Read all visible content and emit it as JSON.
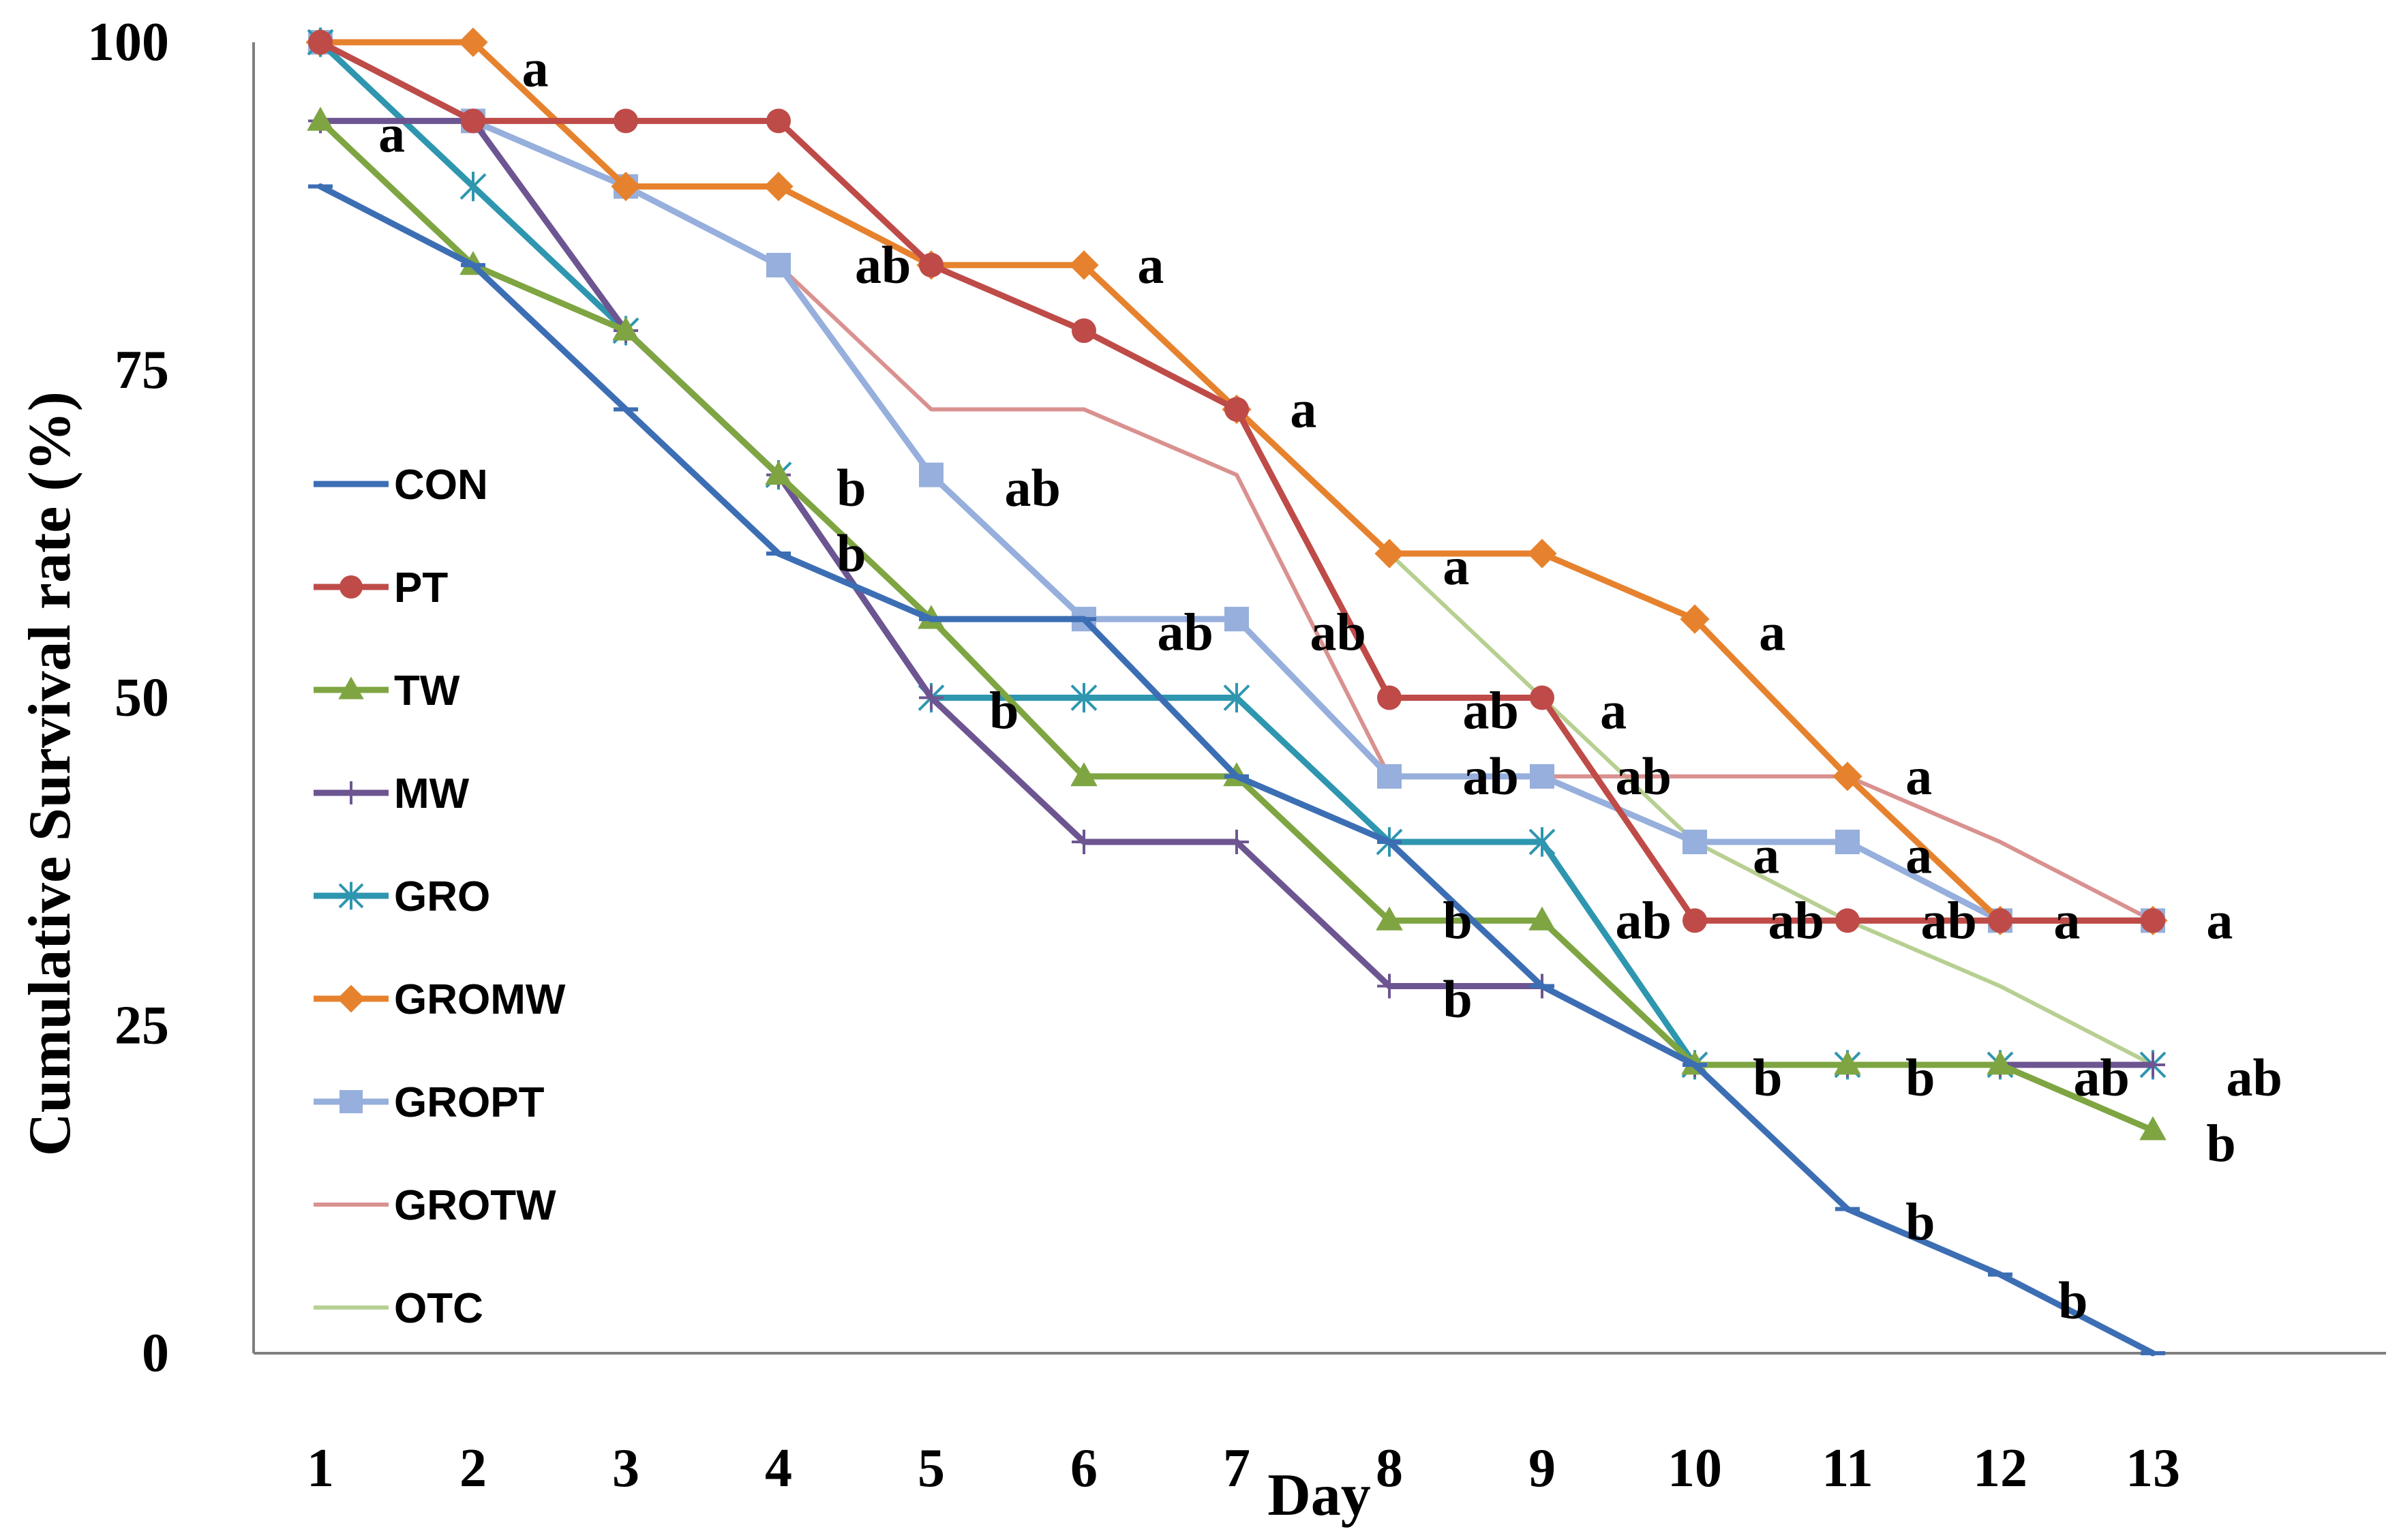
{
  "chart_data": {
    "type": "line",
    "title": "",
    "xlabel": "Day",
    "ylabel": "Cumulative Survival rate (%)",
    "ylim": [
      0,
      100
    ],
    "yticks": [
      0,
      25,
      50,
      75,
      100
    ],
    "x": [
      1,
      2,
      3,
      4,
      5,
      6,
      7,
      8,
      9,
      10,
      11,
      12,
      13
    ],
    "legend_position": "left",
    "series": [
      {
        "name": "CON",
        "color": "#3C6EB4",
        "marker": "dash",
        "width": 9,
        "values": [
          89,
          83,
          72,
          61,
          56,
          56,
          44,
          39,
          28,
          22,
          11,
          6,
          0
        ]
      },
      {
        "name": "PT",
        "color": "#BE4B48",
        "marker": "circle",
        "width": 9,
        "values": [
          100,
          94,
          94,
          94,
          83,
          78,
          72,
          50,
          50,
          33,
          33,
          33,
          33
        ]
      },
      {
        "name": "TW",
        "color": "#7EA542",
        "marker": "triangle",
        "width": 9,
        "values": [
          94,
          83,
          78,
          67,
          56,
          44,
          44,
          33,
          33,
          22,
          22,
          22,
          17
        ]
      },
      {
        "name": "MW",
        "color": "#6D5591",
        "marker": "plus",
        "width": 9,
        "values": [
          94,
          94,
          78,
          67,
          50,
          39,
          39,
          28,
          28,
          22,
          22,
          22,
          22
        ]
      },
      {
        "name": "GRO",
        "color": "#2E96AF",
        "marker": "star",
        "width": 9,
        "values": [
          100,
          89,
          78,
          67,
          50,
          50,
          50,
          39,
          39,
          22,
          22,
          22,
          22
        ]
      },
      {
        "name": "GROMW",
        "color": "#E6822D",
        "marker": "diamond",
        "width": 9,
        "values": [
          100,
          100,
          89,
          89,
          83,
          83,
          72,
          61,
          61,
          56,
          44,
          33,
          33
        ]
      },
      {
        "name": "GROPT",
        "color": "#96AFDC",
        "marker": "square",
        "width": 9,
        "values": [
          100,
          94,
          89,
          83,
          67,
          56,
          56,
          44,
          44,
          39,
          39,
          33,
          33
        ]
      },
      {
        "name": "GROTW",
        "color": "#D9918F",
        "marker": "none",
        "width": 6,
        "values": [
          100,
          94,
          89,
          83,
          72,
          72,
          67,
          44,
          44,
          44,
          44,
          39,
          33
        ]
      },
      {
        "name": "OTC",
        "color": "#B7D092",
        "marker": "none",
        "width": 6,
        "values": [
          100,
          94,
          94,
          94,
          83,
          78,
          72,
          61,
          50,
          39,
          33,
          28,
          22
        ]
      }
    ],
    "annotations": [
      {
        "text": "a",
        "x": 2.32,
        "y": 98
      },
      {
        "text": "a",
        "x": 1.38,
        "y": 93
      },
      {
        "text": "ab",
        "x": 4.5,
        "y": 83
      },
      {
        "text": "a",
        "x": 6.35,
        "y": 83
      },
      {
        "text": "b",
        "x": 4.38,
        "y": 66
      },
      {
        "text": "ab",
        "x": 5.48,
        "y": 66
      },
      {
        "text": "a",
        "x": 7.35,
        "y": 72
      },
      {
        "text": "b",
        "x": 4.38,
        "y": 61
      },
      {
        "text": "ab",
        "x": 6.48,
        "y": 55
      },
      {
        "text": "ab",
        "x": 7.48,
        "y": 55
      },
      {
        "text": "a",
        "x": 8.35,
        "y": 60
      },
      {
        "text": "b",
        "x": 5.38,
        "y": 49
      },
      {
        "text": "ab",
        "x": 8.48,
        "y": 49
      },
      {
        "text": "a",
        "x": 9.38,
        "y": 49
      },
      {
        "text": "a",
        "x": 10.42,
        "y": 55
      },
      {
        "text": "ab",
        "x": 8.48,
        "y": 44
      },
      {
        "text": "ab",
        "x": 9.48,
        "y": 44
      },
      {
        "text": "a",
        "x": 11.38,
        "y": 44
      },
      {
        "text": "a",
        "x": 10.38,
        "y": 38
      },
      {
        "text": "a",
        "x": 11.38,
        "y": 38
      },
      {
        "text": "b",
        "x": 8.35,
        "y": 33
      },
      {
        "text": "ab",
        "x": 9.48,
        "y": 33
      },
      {
        "text": "ab",
        "x": 10.48,
        "y": 33
      },
      {
        "text": "ab",
        "x": 11.48,
        "y": 33
      },
      {
        "text": "a",
        "x": 12.35,
        "y": 33
      },
      {
        "text": "a",
        "x": 13.35,
        "y": 33
      },
      {
        "text": "b",
        "x": 8.35,
        "y": 27
      },
      {
        "text": "b",
        "x": 10.38,
        "y": 21
      },
      {
        "text": "b",
        "x": 11.38,
        "y": 21
      },
      {
        "text": "ab",
        "x": 12.48,
        "y": 21
      },
      {
        "text": "ab",
        "x": 13.48,
        "y": 21
      },
      {
        "text": "b",
        "x": 13.35,
        "y": 16
      },
      {
        "text": "b",
        "x": 11.38,
        "y": 10
      },
      {
        "text": "b",
        "x": 12.38,
        "y": 4
      }
    ]
  }
}
